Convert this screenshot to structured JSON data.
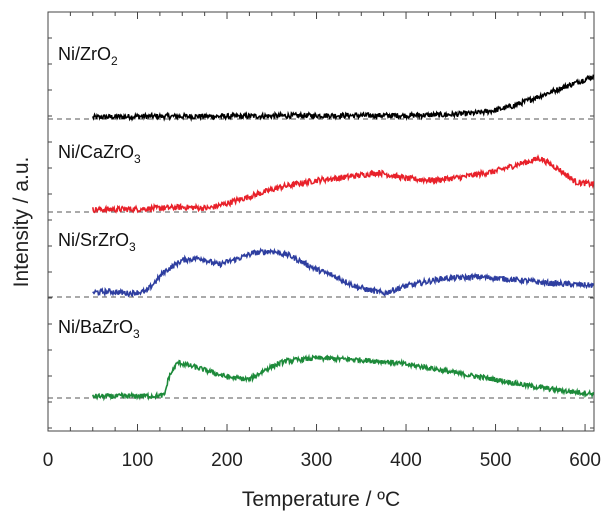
{
  "chart_data": {
    "type": "line",
    "title": "",
    "xlabel": "Temperature / ºC",
    "ylabel": "Intensity / a.u.",
    "xlim": [
      0,
      610
    ],
    "x_ticks": [
      "0",
      "100",
      "200",
      "300",
      "400",
      "500",
      "600"
    ],
    "grid": false,
    "legend": "none",
    "series": [
      {
        "name": "Ni/ZrO2",
        "color": "#000000",
        "baseline_dashed": true,
        "points": [
          [
            50,
            0.04
          ],
          [
            80,
            0.05
          ],
          [
            100,
            0.06
          ],
          [
            150,
            0.06
          ],
          [
            200,
            0.06
          ],
          [
            250,
            0.07
          ],
          [
            300,
            0.08
          ],
          [
            350,
            0.08
          ],
          [
            400,
            0.08
          ],
          [
            450,
            0.1
          ],
          [
            480,
            0.14
          ],
          [
            500,
            0.2
          ],
          [
            520,
            0.3
          ],
          [
            540,
            0.45
          ],
          [
            560,
            0.6
          ],
          [
            580,
            0.75
          ],
          [
            600,
            0.9
          ],
          [
            610,
            0.98
          ]
        ]
      },
      {
        "name": "Ni/CaZrO3",
        "color": "#e8212a",
        "baseline_dashed": true,
        "points": [
          [
            50,
            0.05
          ],
          [
            100,
            0.06
          ],
          [
            150,
            0.1
          ],
          [
            180,
            0.08
          ],
          [
            200,
            0.18
          ],
          [
            230,
            0.35
          ],
          [
            260,
            0.52
          ],
          [
            300,
            0.66
          ],
          [
            330,
            0.72
          ],
          [
            370,
            0.82
          ],
          [
            400,
            0.7
          ],
          [
            430,
            0.66
          ],
          [
            460,
            0.72
          ],
          [
            500,
            0.85
          ],
          [
            530,
            1.02
          ],
          [
            550,
            1.12
          ],
          [
            570,
            0.9
          ],
          [
            590,
            0.62
          ],
          [
            610,
            0.58
          ]
        ]
      },
      {
        "name": "Ni/SrZrO3",
        "color": "#2e3ea0",
        "baseline_dashed": true,
        "points": [
          [
            50,
            0.1
          ],
          [
            70,
            0.12
          ],
          [
            90,
            0.08
          ],
          [
            110,
            0.12
          ],
          [
            130,
            0.55
          ],
          [
            150,
            0.8
          ],
          [
            170,
            0.85
          ],
          [
            190,
            0.7
          ],
          [
            210,
            0.82
          ],
          [
            230,
            0.96
          ],
          [
            250,
            1.0
          ],
          [
            270,
            0.9
          ],
          [
            300,
            0.6
          ],
          [
            320,
            0.45
          ],
          [
            345,
            0.22
          ],
          [
            375,
            0.08
          ],
          [
            400,
            0.24
          ],
          [
            440,
            0.4
          ],
          [
            480,
            0.44
          ],
          [
            520,
            0.38
          ],
          [
            560,
            0.3
          ],
          [
            600,
            0.26
          ],
          [
            610,
            0.25
          ]
        ]
      },
      {
        "name": "Ni/BaZrO3",
        "color": "#1d8a3a",
        "baseline_dashed": true,
        "points": [
          [
            50,
            0.04
          ],
          [
            80,
            0.04
          ],
          [
            100,
            0.05
          ],
          [
            120,
            0.05
          ],
          [
            130,
            0.06
          ],
          [
            135,
            0.5
          ],
          [
            145,
            0.85
          ],
          [
            170,
            0.7
          ],
          [
            200,
            0.5
          ],
          [
            225,
            0.44
          ],
          [
            245,
            0.7
          ],
          [
            265,
            0.88
          ],
          [
            300,
            0.95
          ],
          [
            340,
            0.92
          ],
          [
            380,
            0.86
          ],
          [
            420,
            0.74
          ],
          [
            460,
            0.58
          ],
          [
            500,
            0.44
          ],
          [
            540,
            0.28
          ],
          [
            580,
            0.16
          ],
          [
            610,
            0.1
          ]
        ]
      }
    ]
  }
}
